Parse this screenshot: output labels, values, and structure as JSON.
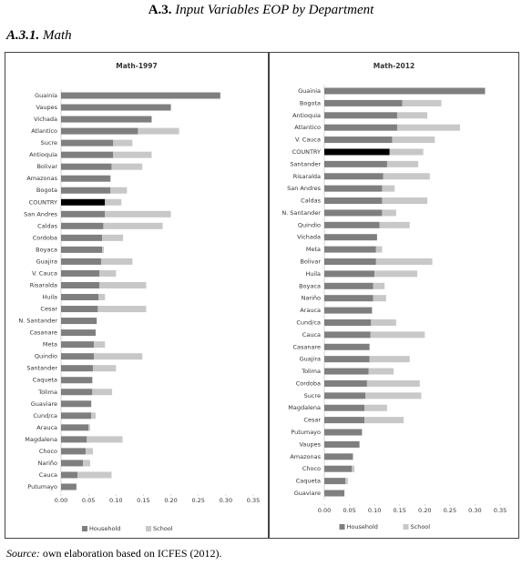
{
  "header": {
    "title_number": "A.3.",
    "title_text": "Input Variables EOP by Department",
    "section_number": "A.3.1.",
    "section_text": "Math"
  },
  "chart_data": [
    {
      "type": "stacked_barh",
      "title": "Math-1997",
      "categories": [
        "Guainia",
        "Vaupes",
        "Vichada",
        "Atlantico",
        "Sucre",
        "Antioquia",
        "Bolivar",
        "Amazonas",
        "Bogota",
        "COUNTRY",
        "San Andres",
        "Caldas",
        "Cordoba",
        "Boyaca",
        "Guajira",
        "V. Cauca",
        "Risaralda",
        "Huila",
        "Cesar",
        "N. Santander",
        "Casanare",
        "Meta",
        "Quindio",
        "Santander",
        "Caqueta",
        "Tolima",
        "Guaviare",
        "Cund/ca",
        "Arauca",
        "Magdalena",
        "Choco",
        "Nariño",
        "Cauca",
        "Putumayo"
      ],
      "series": [
        {
          "name": "Household",
          "color": "#7f7f7f",
          "values": [
            0.29,
            0.2,
            0.165,
            0.14,
            0.095,
            0.095,
            0.092,
            0.09,
            0.09,
            0.08,
            0.08,
            0.077,
            0.075,
            0.075,
            0.073,
            0.07,
            0.07,
            0.068,
            0.067,
            0.065,
            0.063,
            0.06,
            0.06,
            0.058,
            0.057,
            0.057,
            0.055,
            0.055,
            0.05,
            0.047,
            0.045,
            0.04,
            0.03,
            0.028
          ]
        },
        {
          "name": "School",
          "color": "#c8c8c8",
          "values": [
            0,
            0,
            0,
            0.075,
            0.035,
            0.07,
            0.056,
            0,
            0.03,
            0.03,
            0.12,
            0.108,
            0.038,
            0.003,
            0.057,
            0.03,
            0.085,
            0.012,
            0.088,
            0,
            0,
            0.02,
            0.088,
            0.042,
            0,
            0.036,
            0,
            0.008,
            0.003,
            0.065,
            0.013,
            0.013,
            0.062,
            0
          ]
        }
      ],
      "highlight": "COUNTRY",
      "highlight_color": "#000000",
      "xlim": [
        0,
        0.35
      ],
      "xticks": [
        {
          "value": 0,
          "label": "0.00"
        },
        {
          "value": 0.05,
          "label": "0.05"
        },
        {
          "value": 0.1,
          "label": "0.10"
        },
        {
          "value": 0.15,
          "label": "0.15"
        },
        {
          "value": 0.2,
          "label": "0.20"
        },
        {
          "value": 0.25,
          "label": "0.25"
        },
        {
          "value": 0.3,
          "label": "0.30"
        },
        {
          "value": 0.35,
          "label": "0.35"
        }
      ],
      "legend": "bottom"
    },
    {
      "type": "stacked_barh",
      "title": "Math-2012",
      "categories": [
        "Guainia",
        "Bogota",
        "Antioquia",
        "Atlantico",
        "V. Cauca",
        "COUNTRY",
        "Santander",
        "Risaralda",
        "San Andres",
        "Caldas",
        "N. Santander",
        "Quindio",
        "Vichada",
        "Meta",
        "Bolivar",
        "Huila",
        "Boyaca",
        "Nariño",
        "Arauca",
        "Cund/ca",
        "Cauca",
        "Casanare",
        "Guajira",
        "Tolima",
        "Cordoba",
        "Sucre",
        "Magdalena",
        "Cesar",
        "Putumayo",
        "Vaupes",
        "Amazonas",
        "Choco",
        "Caqueta",
        "Guaviare"
      ],
      "series": [
        {
          "name": "Household",
          "color": "#7f7f7f",
          "values": [
            0.32,
            0.155,
            0.145,
            0.145,
            0.135,
            0.13,
            0.125,
            0.117,
            0.115,
            0.115,
            0.115,
            0.11,
            0.105,
            0.103,
            0.103,
            0.1,
            0.097,
            0.097,
            0.095,
            0.093,
            0.092,
            0.09,
            0.09,
            0.088,
            0.085,
            0.082,
            0.08,
            0.08,
            0.075,
            0.07,
            0.057,
            0.055,
            0.042,
            0.04
          ]
        },
        {
          "name": "School",
          "color": "#c8c8c8",
          "values": [
            0,
            0.078,
            0.06,
            0.125,
            0.085,
            0.067,
            0.062,
            0.093,
            0.025,
            0.09,
            0.028,
            0.06,
            0,
            0.012,
            0.112,
            0.085,
            0.023,
            0.026,
            0,
            0.05,
            0.108,
            0,
            0.08,
            0.05,
            0.105,
            0.111,
            0.045,
            0.078,
            0,
            0,
            0,
            0.005,
            0.005,
            0
          ]
        }
      ],
      "highlight": "COUNTRY",
      "highlight_color": "#000000",
      "xlim": [
        0,
        0.35
      ],
      "xticks": [
        {
          "value": 0,
          "label": "0.00"
        },
        {
          "value": 0.05,
          "label": "0.05"
        },
        {
          "value": 0.1,
          "label": "0.10"
        },
        {
          "value": 0.15,
          "label": "0.15"
        },
        {
          "value": 0.2,
          "label": "0.20"
        },
        {
          "value": 0.25,
          "label": "0.25"
        },
        {
          "value": 0.3,
          "label": "0.30"
        },
        {
          "value": 0.35,
          "label": "0.35"
        }
      ],
      "legend": "bottom"
    }
  ],
  "source": {
    "label": "Source:",
    "text": "own elaboration based on ICFES (2012)."
  }
}
